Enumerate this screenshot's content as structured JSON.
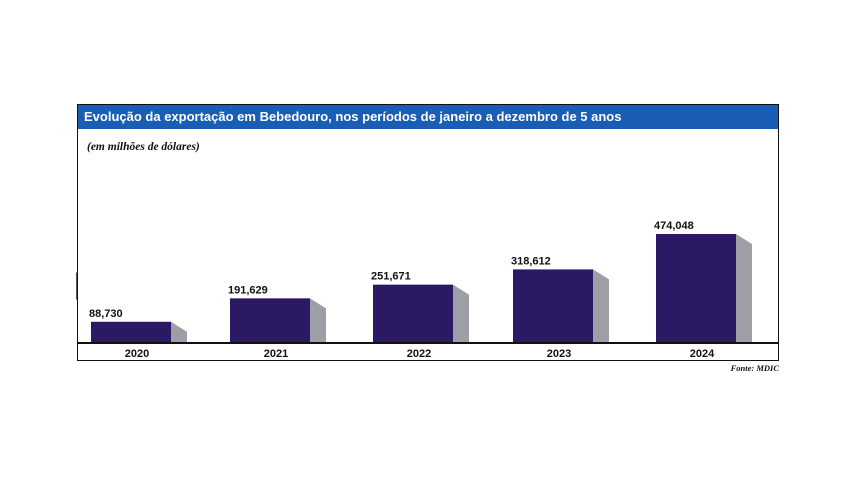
{
  "chart_data": {
    "type": "bar",
    "title": "Evolução da exportação em Bebedouro, nos períodos de janeiro a dezembro de 5 anos",
    "subtitle": "(em milhões de dólares)",
    "source": "Fonte: MDIC",
    "categories": [
      "2020",
      "2021",
      "2022",
      "2023",
      "2024"
    ],
    "values": [
      88730,
      191629,
      251671,
      318612,
      474048
    ],
    "value_labels": [
      "88,730",
      "191,629",
      "251,671",
      "318,612",
      "474,048"
    ],
    "ylim": [
      0,
      520000
    ],
    "grid": false,
    "bar_style": "3d",
    "colors": {
      "bar_front": "#2b1a63",
      "bar_side": "#9e9ea6",
      "title_bar": "#1a5db4",
      "pointer": "#555555"
    }
  }
}
